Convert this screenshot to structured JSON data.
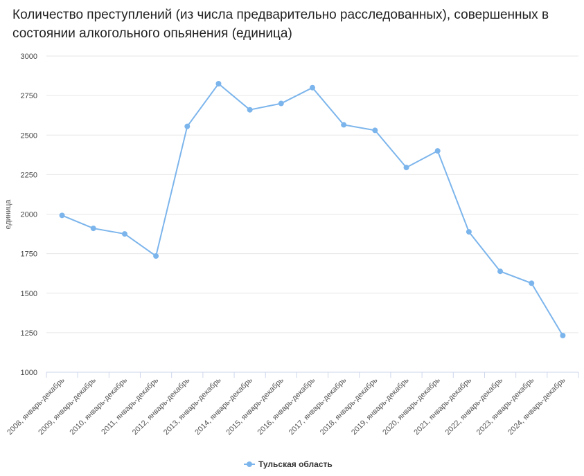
{
  "chart_data": {
    "type": "line",
    "title": "Количество преступлений (из числа предварительно расследованных), совершенных в состоянии алкогольного опьянения (единица)",
    "ylabel": "единица",
    "xlabel": "",
    "ylim": [
      1000,
      3000
    ],
    "yticks": [
      1000,
      1250,
      1500,
      1750,
      2000,
      2250,
      2500,
      2750,
      3000
    ],
    "grid": true,
    "legend_position": "bottom",
    "categories": [
      "2008, январь-декабрь",
      "2009, январь-декабрь",
      "2010, январь-декабрь",
      "2011, январь-декабрь",
      "2012, январь-декабрь",
      "2013, январь-декабрь",
      "2014, январь-декабрь",
      "2015, январь-декабрь",
      "2016, январь-декабрь",
      "2017, январь-декабрь",
      "2018, январь-декабрь",
      "2019, январь-декабрь",
      "2020, январь-декабрь",
      "2021, январь-декабрь",
      "2022, январь-декабрь",
      "2023, январь-декабрь",
      "2024, январь-декабрь"
    ],
    "series": [
      {
        "name": "Тульская область",
        "color": "#7cb5ec",
        "values": [
          1992,
          1910,
          1875,
          1735,
          2555,
          2825,
          2660,
          2700,
          2800,
          2565,
          2530,
          2295,
          2400,
          1888,
          1638,
          1563,
          1232
        ]
      }
    ]
  }
}
